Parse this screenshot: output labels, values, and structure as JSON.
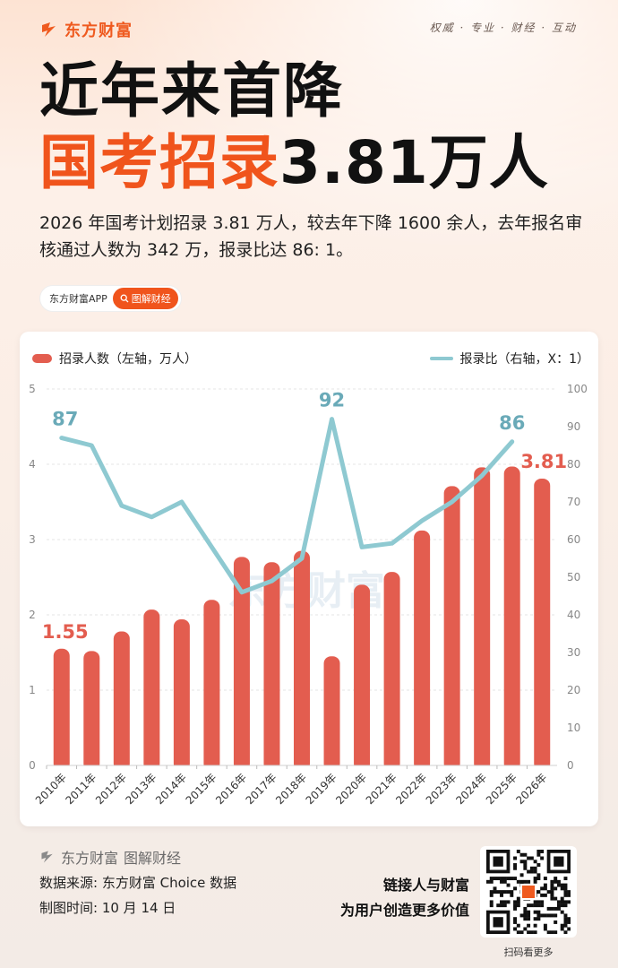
{
  "header": {
    "brand": "东方财富",
    "slogan": "权威 · 专业 · 财经 · 互动"
  },
  "title": {
    "line1": "近年来首降",
    "line2_highlight": "国考招录",
    "line2_rest": "3.81万人"
  },
  "description": "2026 年国考计划招录 3.81 万人，较去年下降 1600 余人，去年报名审核通过人数为 342 万，报录比达 86: 1。",
  "tags": {
    "app": "东方财富APP",
    "category": "图解财经"
  },
  "watermark": "东方财富",
  "chart_data": {
    "type": "bar",
    "categories": [
      "2010年",
      "2011年",
      "2012年",
      "2013年",
      "2014年",
      "2015年",
      "2016年",
      "2017年",
      "2018年",
      "2019年",
      "2020年",
      "2021年",
      "2022年",
      "2023年",
      "2024年",
      "2025年",
      "2026年"
    ],
    "series": [
      {
        "name": "招录人数（左轴，万人）",
        "type": "bar",
        "axis": "left",
        "values": [
          1.55,
          1.52,
          1.78,
          2.07,
          1.94,
          2.2,
          2.77,
          2.7,
          2.85,
          1.45,
          2.4,
          2.57,
          3.12,
          3.71,
          3.96,
          3.97,
          3.81
        ]
      },
      {
        "name": "报录比（右轴，X：1）",
        "type": "line",
        "axis": "right",
        "values": [
          87,
          85,
          69,
          66,
          70,
          58,
          46,
          49,
          55,
          92,
          58,
          59,
          65,
          70,
          77,
          86,
          null
        ]
      }
    ],
    "data_labels": [
      {
        "series": 0,
        "index": 0,
        "text": "1.55"
      },
      {
        "series": 0,
        "index": 16,
        "text": "3.81"
      },
      {
        "series": 1,
        "index": 0,
        "text": "87"
      },
      {
        "series": 1,
        "index": 9,
        "text": "92"
      },
      {
        "series": 1,
        "index": 15,
        "text": "86"
      }
    ],
    "y_left": {
      "min": 0,
      "max": 5,
      "ticks": [
        "0",
        "1",
        "2",
        "3",
        "4",
        "5"
      ]
    },
    "y_right": {
      "min": 0,
      "max": 100,
      "ticks": [
        "0",
        "10",
        "20",
        "30",
        "40",
        "50",
        "60",
        "70",
        "80",
        "90",
        "100"
      ]
    },
    "grid": true,
    "legend_placement": "top",
    "colors": {
      "bar": "#e35d4f",
      "line": "#8ec9d1",
      "bar_label": "#e35d4f",
      "line_label": "#6aaab8"
    }
  },
  "footer": {
    "brand": "东方财富",
    "category": "图解财经",
    "source": "数据来源: 东方财富 Choice 数据",
    "date": "制图时间: 10 月 14 日",
    "tagline1": "链接人与财富",
    "tagline2": "为用户创造更多价值",
    "qr_caption": "扫码看更多"
  }
}
